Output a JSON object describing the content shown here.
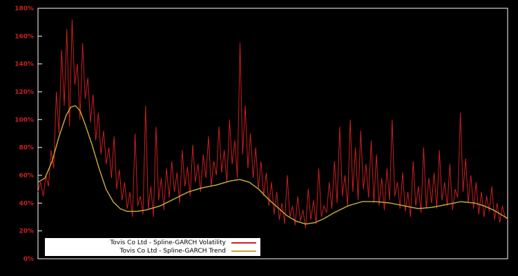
{
  "colors": {
    "background": "#000000",
    "frame": "#ffffff",
    "axis_label": "#cc1f1f",
    "legend_bg": "#ffffff",
    "legend_text": "#000000",
    "volatility": "#cc1f1f",
    "trend": "#c0a838"
  },
  "chart_data": {
    "type": "line",
    "title": "",
    "xlabel": "",
    "ylabel": "",
    "grid": false,
    "legend_position": "bottom-left",
    "ylim": [
      0,
      180
    ],
    "ytick_step": 20,
    "ytick_labels": [
      "0%",
      "20%",
      "40%",
      "60%",
      "80%",
      "100%",
      "120%",
      "140%",
      "160%",
      "180%"
    ],
    "series": [
      {
        "name": "Tovis Co Ltd - Spline-GARCH Volatility",
        "color": "#cc1f1f",
        "unit": "percent",
        "values": [
          48,
          55,
          45,
          60,
          52,
          78,
          65,
          120,
          90,
          150,
          110,
          165,
          95,
          172,
          125,
          140,
          100,
          155,
          115,
          130,
          98,
          118,
          85,
          105,
          75,
          92,
          68,
          80,
          58,
          88,
          50,
          64,
          42,
          55,
          36,
          48,
          30,
          90,
          38,
          45,
          32,
          110,
          36,
          52,
          30,
          95,
          42,
          58,
          35,
          65,
          44,
          70,
          48,
          62,
          40,
          78,
          52,
          66,
          45,
          82,
          55,
          68,
          48,
          75,
          58,
          88,
          52,
          70,
          60,
          95,
          62,
          78,
          55,
          100,
          68,
          85,
          58,
          155,
          75,
          110,
          65,
          90,
          58,
          80,
          50,
          70,
          45,
          62,
          38,
          55,
          32,
          48,
          28,
          40,
          25,
          60,
          30,
          38,
          24,
          45,
          27,
          35,
          22,
          50,
          28,
          42,
          25,
          65,
          30,
          38,
          33,
          55,
          36,
          70,
          40,
          95,
          45,
          60,
          38,
          100,
          48,
          80,
          42,
          92,
          50,
          68,
          44,
          85,
          40,
          75,
          38,
          58,
          35,
          65,
          42,
          100,
          45,
          55,
          36,
          62,
          34,
          48,
          30,
          70,
          38,
          52,
          33,
          80,
          36,
          58,
          40,
          62,
          36,
          78,
          42,
          55,
          38,
          68,
          35,
          50,
          44,
          105,
          48,
          72,
          40,
          60,
          36,
          55,
          32,
          48,
          30,
          45,
          34,
          52,
          28,
          40,
          26,
          38,
          30,
          28
        ]
      },
      {
        "name": "Tovis Co Ltd - Spline-GARCH Trend",
        "color": "#c0a838",
        "unit": "percent",
        "points": [
          [
            0.0,
            55
          ],
          [
            0.015,
            58
          ],
          [
            0.03,
            70
          ],
          [
            0.045,
            88
          ],
          [
            0.06,
            103
          ],
          [
            0.07,
            109
          ],
          [
            0.08,
            110
          ],
          [
            0.09,
            106
          ],
          [
            0.1,
            97
          ],
          [
            0.115,
            82
          ],
          [
            0.13,
            65
          ],
          [
            0.145,
            50
          ],
          [
            0.16,
            41
          ],
          [
            0.175,
            36
          ],
          [
            0.19,
            34
          ],
          [
            0.21,
            34
          ],
          [
            0.23,
            35
          ],
          [
            0.26,
            38
          ],
          [
            0.29,
            43
          ],
          [
            0.32,
            48
          ],
          [
            0.35,
            51
          ],
          [
            0.38,
            53
          ],
          [
            0.41,
            56
          ],
          [
            0.43,
            57
          ],
          [
            0.45,
            55
          ],
          [
            0.47,
            50
          ],
          [
            0.49,
            43
          ],
          [
            0.51,
            37
          ],
          [
            0.53,
            31
          ],
          [
            0.55,
            27
          ],
          [
            0.57,
            25
          ],
          [
            0.59,
            26
          ],
          [
            0.61,
            29
          ],
          [
            0.63,
            33
          ],
          [
            0.66,
            38
          ],
          [
            0.69,
            41
          ],
          [
            0.72,
            41
          ],
          [
            0.75,
            40
          ],
          [
            0.78,
            38
          ],
          [
            0.81,
            36
          ],
          [
            0.84,
            37
          ],
          [
            0.87,
            39
          ],
          [
            0.9,
            41
          ],
          [
            0.93,
            40
          ],
          [
            0.95,
            38
          ],
          [
            0.97,
            35
          ],
          [
            0.985,
            32
          ],
          [
            1.0,
            29
          ]
        ]
      }
    ]
  },
  "legend": {
    "entries": [
      {
        "label": "Tovis Co Ltd - Spline-GARCH Volatility",
        "color": "#cc1f1f"
      },
      {
        "label": "Tovis Co Ltd - Spline-GARCH Trend",
        "color": "#c0a838"
      }
    ]
  }
}
